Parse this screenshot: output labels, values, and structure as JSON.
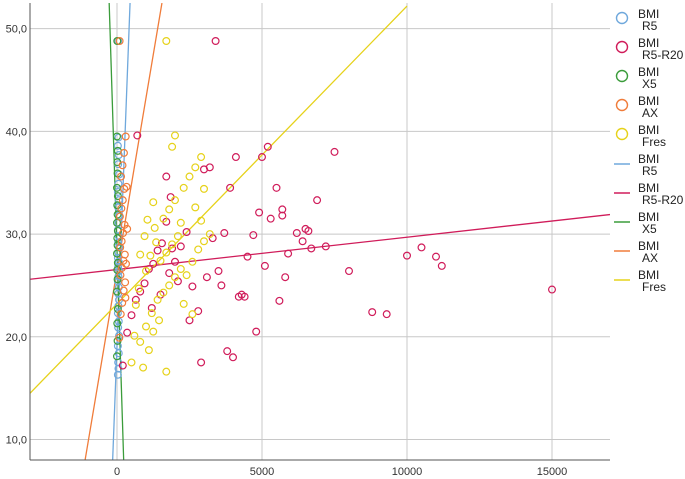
{
  "chart_data": {
    "type": "scatter",
    "title": "",
    "xlabel": "",
    "ylabel": "",
    "xlim": [
      -3000,
      17000
    ],
    "ylim": [
      8.0,
      52.5
    ],
    "grid": true,
    "legend_position": "right",
    "x_ticks": [
      {
        "value": 0,
        "label": "0"
      },
      {
        "value": 5000,
        "label": "5000"
      },
      {
        "value": 10000,
        "label": "10000"
      },
      {
        "value": 15000,
        "label": "15000"
      }
    ],
    "y_ticks": [
      {
        "value": 10,
        "label": "10,0"
      },
      {
        "value": 20,
        "label": "20,0"
      },
      {
        "value": 30,
        "label": "30,0"
      },
      {
        "value": 40,
        "label": "40,0"
      },
      {
        "value": 50,
        "label": "50,0"
      }
    ],
    "series": [
      {
        "name": "BMI R5",
        "color": "#6fa8dc",
        "points": [
          [
            30,
            16.3
          ],
          [
            50,
            16.9
          ],
          [
            40,
            17.5
          ],
          [
            60,
            18.4
          ],
          [
            30,
            19.1
          ],
          [
            70,
            20.1
          ],
          [
            40,
            20.9
          ],
          [
            60,
            21.5
          ],
          [
            30,
            22.3
          ],
          [
            50,
            23.0
          ],
          [
            70,
            23.6
          ],
          [
            40,
            24.2
          ],
          [
            60,
            24.8
          ],
          [
            30,
            25.4
          ],
          [
            50,
            25.9
          ],
          [
            70,
            26.4
          ],
          [
            40,
            26.8
          ],
          [
            60,
            27.3
          ],
          [
            30,
            27.7
          ],
          [
            50,
            28.2
          ],
          [
            70,
            28.7
          ],
          [
            40,
            29.2
          ],
          [
            60,
            29.8
          ],
          [
            30,
            30.4
          ],
          [
            50,
            31.1
          ],
          [
            70,
            31.8
          ],
          [
            40,
            32.6
          ],
          [
            60,
            33.3
          ],
          [
            30,
            34.1
          ],
          [
            50,
            34.9
          ],
          [
            70,
            35.8
          ],
          [
            40,
            36.8
          ],
          [
            60,
            37.7
          ],
          [
            30,
            38.6
          ],
          [
            50,
            39.4
          ],
          [
            40,
            48.8
          ]
        ]
      },
      {
        "name": "BMI R5-R20",
        "color": "#d01c5a",
        "points": [
          [
            200,
            17.2
          ],
          [
            350,
            20.4
          ],
          [
            500,
            22.1
          ],
          [
            650,
            23.6
          ],
          [
            800,
            24.4
          ],
          [
            950,
            25.2
          ],
          [
            1100,
            26.6
          ],
          [
            1250,
            27.1
          ],
          [
            1400,
            28.4
          ],
          [
            1550,
            29.1
          ],
          [
            1700,
            31.2
          ],
          [
            1850,
            33.6
          ],
          [
            1200,
            22.8
          ],
          [
            1500,
            24.1
          ],
          [
            1800,
            26.2
          ],
          [
            2000,
            27.3
          ],
          [
            2200,
            28.8
          ],
          [
            2400,
            30.2
          ],
          [
            2600,
            24.9
          ],
          [
            2800,
            22.5
          ],
          [
            2900,
            17.5
          ],
          [
            3100,
            25.8
          ],
          [
            3300,
            29.6
          ],
          [
            3500,
            26.4
          ],
          [
            3700,
            30.1
          ],
          [
            3900,
            34.5
          ],
          [
            4100,
            37.5
          ],
          [
            4300,
            24.1
          ],
          [
            4500,
            27.8
          ],
          [
            4700,
            29.9
          ],
          [
            4900,
            32.1
          ],
          [
            5100,
            26.9
          ],
          [
            5300,
            31.5
          ],
          [
            5500,
            34.5
          ],
          [
            5700,
            32.4
          ],
          [
            5900,
            28.1
          ],
          [
            6200,
            30.1
          ],
          [
            6400,
            29.3
          ],
          [
            6600,
            30.3
          ],
          [
            6900,
            33.3
          ],
          [
            7200,
            28.8
          ],
          [
            7500,
            38.0
          ],
          [
            8000,
            26.4
          ],
          [
            8800,
            22.4
          ],
          [
            9300,
            22.2
          ],
          [
            10000,
            27.9
          ],
          [
            10500,
            28.7
          ],
          [
            11000,
            27.8
          ],
          [
            11200,
            26.9
          ],
          [
            15000,
            24.6
          ],
          [
            4000,
            18.0
          ],
          [
            4200,
            23.9
          ],
          [
            3800,
            18.6
          ],
          [
            5600,
            23.5
          ],
          [
            5000,
            37.5
          ],
          [
            5200,
            38.5
          ],
          [
            3400,
            48.8
          ],
          [
            4800,
            20.5
          ],
          [
            2500,
            21.6
          ],
          [
            3600,
            25.0
          ],
          [
            1700,
            35.6
          ],
          [
            700,
            39.6
          ],
          [
            5800,
            25.8
          ],
          [
            4400,
            23.9
          ],
          [
            3000,
            36.3
          ],
          [
            3200,
            36.5
          ],
          [
            6700,
            28.6
          ],
          [
            6500,
            30.5
          ],
          [
            1900,
            28.6
          ],
          [
            2100,
            25.4
          ],
          [
            5700,
            31.8
          ]
        ]
      },
      {
        "name": "BMI X5",
        "color": "#3b9c3b",
        "points": [
          [
            0,
            18.1
          ],
          [
            20,
            19.6
          ],
          [
            10,
            21.3
          ],
          [
            30,
            22.7
          ],
          [
            0,
            24.4
          ],
          [
            20,
            25.6
          ],
          [
            10,
            26.5
          ],
          [
            30,
            27.2
          ],
          [
            0,
            28.1
          ],
          [
            20,
            28.9
          ],
          [
            10,
            29.6
          ],
          [
            30,
            30.3
          ],
          [
            0,
            31.1
          ],
          [
            20,
            31.9
          ],
          [
            10,
            32.8
          ],
          [
            30,
            33.7
          ],
          [
            0,
            34.5
          ],
          [
            20,
            35.9
          ],
          [
            10,
            37.0
          ],
          [
            30,
            38.1
          ],
          [
            0,
            39.5
          ],
          [
            10,
            48.8
          ]
        ]
      },
      {
        "name": "BMI AX",
        "color": "#f07c3a",
        "points": [
          [
            80,
            19.9
          ],
          [
            130,
            22.2
          ],
          [
            180,
            23.3
          ],
          [
            230,
            24.5
          ],
          [
            280,
            25.3
          ],
          [
            120,
            26.0
          ],
          [
            170,
            26.7
          ],
          [
            220,
            27.4
          ],
          [
            270,
            28.0
          ],
          [
            110,
            28.7
          ],
          [
            160,
            29.3
          ],
          [
            210,
            30.1
          ],
          [
            260,
            30.9
          ],
          [
            100,
            31.7
          ],
          [
            150,
            32.5
          ],
          [
            200,
            33.3
          ],
          [
            250,
            34.4
          ],
          [
            140,
            35.6
          ],
          [
            190,
            36.7
          ],
          [
            240,
            37.9
          ],
          [
            300,
            39.5
          ],
          [
            90,
            48.8
          ],
          [
            330,
            34.6
          ],
          [
            350,
            30.5
          ],
          [
            310,
            27.1
          ],
          [
            290,
            23.8
          ]
        ]
      },
      {
        "name": "BMI Fres",
        "color": "#e6d21a",
        "points": [
          [
            500,
            17.5
          ],
          [
            800,
            19.5
          ],
          [
            1000,
            21.0
          ],
          [
            1200,
            22.3
          ],
          [
            1400,
            23.6
          ],
          [
            1600,
            24.3
          ],
          [
            1800,
            25.0
          ],
          [
            2000,
            25.8
          ],
          [
            2200,
            26.6
          ],
          [
            1500,
            27.4
          ],
          [
            1700,
            28.2
          ],
          [
            1900,
            29.0
          ],
          [
            2100,
            29.8
          ],
          [
            1300,
            30.6
          ],
          [
            1600,
            31.5
          ],
          [
            1800,
            32.4
          ],
          [
            2000,
            33.3
          ],
          [
            2300,
            34.5
          ],
          [
            2500,
            35.6
          ],
          [
            2700,
            36.5
          ],
          [
            2900,
            37.5
          ],
          [
            1900,
            38.5
          ],
          [
            2000,
            39.6
          ],
          [
            1700,
            48.8
          ],
          [
            900,
            17.0
          ],
          [
            1100,
            18.7
          ],
          [
            1250,
            20.5
          ],
          [
            1450,
            21.6
          ],
          [
            2400,
            26.0
          ],
          [
            2600,
            27.3
          ],
          [
            2800,
            28.5
          ],
          [
            3000,
            29.3
          ],
          [
            3200,
            30.0
          ],
          [
            2900,
            31.3
          ],
          [
            2700,
            32.6
          ],
          [
            1000,
            26.4
          ],
          [
            1150,
            27.9
          ],
          [
            1350,
            29.2
          ],
          [
            750,
            24.7
          ],
          [
            650,
            23.1
          ],
          [
            600,
            20.1
          ],
          [
            2200,
            31.1
          ],
          [
            3000,
            34.4
          ],
          [
            2300,
            23.2
          ],
          [
            2600,
            22.2
          ],
          [
            1700,
            16.6
          ],
          [
            800,
            28.0
          ],
          [
            950,
            29.8
          ],
          [
            1050,
            31.4
          ],
          [
            1250,
            33.1
          ]
        ]
      }
    ],
    "fit_lines": [
      {
        "name": "BMI R5",
        "color": "#6fa8dc",
        "x1": -150,
        "y1": 8.0,
        "x2": 450,
        "y2": 52.5
      },
      {
        "name": "BMI R5-R20",
        "color": "#d01c5a",
        "x1": -3000,
        "y1": 25.6,
        "x2": 17000,
        "y2": 31.9
      },
      {
        "name": "BMI X5",
        "color": "#3b9c3b",
        "x1": 230,
        "y1": 8.0,
        "x2": -270,
        "y2": 52.5
      },
      {
        "name": "BMI AX",
        "color": "#f07c3a",
        "x1": -1100,
        "y1": 8.0,
        "x2": 1550,
        "y2": 52.5
      },
      {
        "name": "BMI Fres",
        "color": "#e6d21a",
        "x1": -3000,
        "y1": 14.5,
        "x2": 10000,
        "y2": 52.2
      }
    ],
    "legend": [
      {
        "kind": "marker",
        "line1": "BMI",
        "line2": "R5",
        "color": "#6fa8dc"
      },
      {
        "kind": "marker",
        "line1": "BMI",
        "line2": "R5-R20",
        "color": "#d01c5a"
      },
      {
        "kind": "marker",
        "line1": "BMI",
        "line2": "X5",
        "color": "#3b9c3b"
      },
      {
        "kind": "marker",
        "line1": "BMI",
        "line2": "AX",
        "color": "#f07c3a"
      },
      {
        "kind": "marker",
        "line1": "BMI",
        "line2": "Fres",
        "color": "#e6d21a"
      },
      {
        "kind": "line",
        "line1": "BMI",
        "line2": "R5",
        "color": "#6fa8dc"
      },
      {
        "kind": "line",
        "line1": "BMI",
        "line2": "R5-R20",
        "color": "#d01c5a"
      },
      {
        "kind": "line",
        "line1": "BMI",
        "line2": "X5",
        "color": "#3b9c3b"
      },
      {
        "kind": "line",
        "line1": "BMI",
        "line2": "AX",
        "color": "#f07c3a"
      },
      {
        "kind": "line",
        "line1": "BMI",
        "line2": "Fres",
        "color": "#e6d21a"
      }
    ]
  }
}
